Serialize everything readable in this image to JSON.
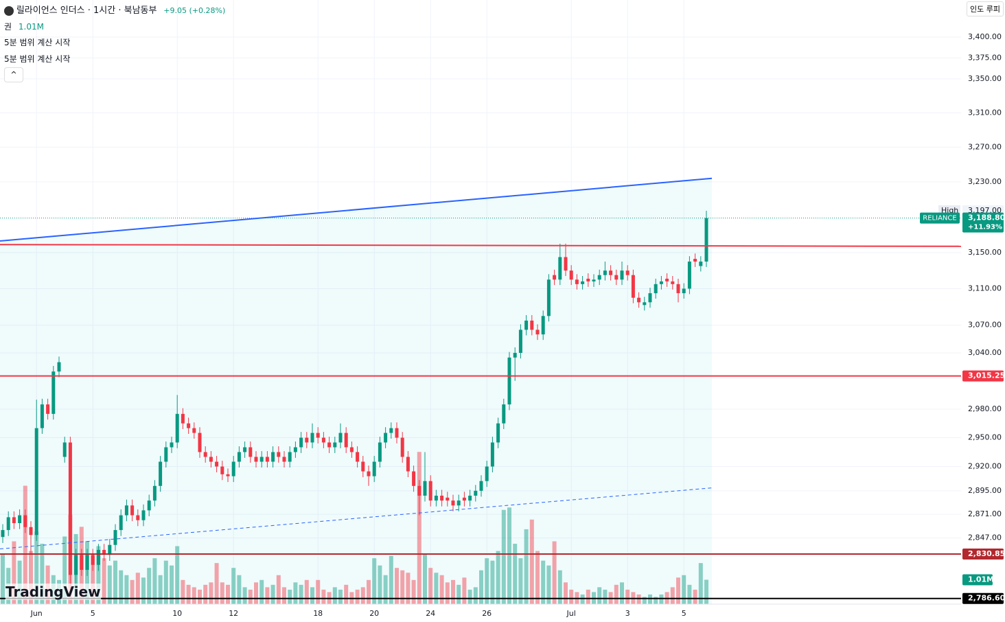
{
  "header": {
    "title": "릴라이언스 인더스 · 1시간 · 북남동부",
    "change": "+9.05 (+0.28%)",
    "volume_name": "권",
    "volume_text": "1.01M",
    "notes": [
      "5분 범위 계산 시작",
      "5분 범위 계산 시작"
    ],
    "currency": "인도 루피",
    "logo": "TradingView"
  },
  "chart_data": {
    "type": "candlestick",
    "log_scale": true,
    "grid": true,
    "up_color": "#089981",
    "down_color": "#f23645",
    "categories": [
      null,
      null,
      null,
      null,
      null,
      null,
      "Jun",
      null,
      null,
      null,
      null,
      null,
      null,
      null,
      null,
      null,
      "5",
      null,
      null,
      null,
      null,
      null,
      null,
      null,
      null,
      null,
      null,
      null,
      null,
      null,
      null,
      "10",
      null,
      null,
      null,
      null,
      null,
      null,
      null,
      null,
      null,
      "12",
      null,
      null,
      null,
      null,
      null,
      null,
      null,
      null,
      null,
      null,
      null,
      null,
      null,
      null,
      "18",
      null,
      null,
      null,
      null,
      null,
      null,
      null,
      null,
      null,
      "20",
      null,
      null,
      null,
      null,
      null,
      null,
      null,
      null,
      null,
      "24",
      null,
      null,
      null,
      null,
      null,
      null,
      null,
      null,
      null,
      "26",
      null,
      null,
      null,
      null,
      null,
      null,
      null,
      null,
      null,
      null,
      null,
      null,
      null,
      null,
      "Jul",
      null,
      null,
      null,
      null,
      null,
      null,
      null,
      null,
      null,
      "3",
      null,
      null,
      null,
      null,
      null,
      null,
      null,
      null,
      null,
      "5",
      null,
      null,
      null,
      null
    ],
    "open": [
      2848,
      2855,
      2868,
      2862,
      2870,
      2858,
      2850,
      2960,
      2985,
      2975,
      3020,
      2930,
      2945,
      2810,
      2830,
      2815,
      2830,
      2820,
      2835,
      2830,
      2840,
      2855,
      2870,
      2880,
      2870,
      2865,
      2875,
      2885,
      2900,
      2925,
      2940,
      2945,
      2975,
      2965,
      2960,
      2955,
      2935,
      2930,
      2925,
      2920,
      2912,
      2910,
      2925,
      2935,
      2940,
      2930,
      2925,
      2930,
      2925,
      2935,
      2930,
      2925,
      2935,
      2940,
      2950,
      2945,
      2955,
      2950,
      2945,
      2940,
      2945,
      2955,
      2940,
      2935,
      2925,
      2915,
      2910,
      2925,
      2945,
      2955,
      2960,
      2950,
      2930,
      2915,
      2900,
      2890,
      2905,
      2885,
      2890,
      2888,
      2885,
      2880,
      2888,
      2885,
      2890,
      2895,
      2905,
      2920,
      2945,
      2965,
      2985,
      3035,
      3040,
      3065,
      3075,
      3065,
      3060,
      3080,
      3125,
      3120,
      3145,
      3130,
      3120,
      3115,
      3121,
      3118,
      3120,
      3125,
      3130,
      3125,
      3120,
      3130,
      3125,
      3100,
      3092,
      3095,
      3105,
      3115,
      3121,
      3118,
      3115,
      3105,
      3110,
      3143,
      3135,
      3140
    ],
    "high": [
      2861,
      2874,
      2874,
      2876,
      2876,
      2864,
      2990,
      2991,
      2991,
      3026,
      3036,
      2951,
      2951,
      2836,
      2836,
      2836,
      2836,
      2841,
      2841,
      2846,
      2861,
      2876,
      2886,
      2886,
      2876,
      2881,
      2891,
      2906,
      2931,
      2946,
      2951,
      2995,
      2981,
      2971,
      2966,
      2961,
      2941,
      2936,
      2931,
      2926,
      2918,
      2931,
      2941,
      2946,
      2946,
      2936,
      2936,
      2936,
      2941,
      2941,
      2936,
      2941,
      2946,
      2956,
      2956,
      2965,
      2961,
      2956,
      2951,
      2951,
      2965,
      2961,
      2946,
      2941,
      2931,
      2921,
      2931,
      2951,
      2961,
      2966,
      2966,
      2956,
      2936,
      2921,
      2906,
      2935,
      2911,
      2896,
      2896,
      2894,
      2891,
      2891,
      2894,
      2896,
      2901,
      2911,
      2926,
      2951,
      2971,
      2991,
      3041,
      3046,
      3071,
      3081,
      3081,
      3071,
      3086,
      3126,
      3131,
      3160,
      3160,
      3136,
      3126,
      3124,
      3127,
      3126,
      3131,
      3140,
      3136,
      3131,
      3140,
      3136,
      3131,
      3106,
      3101,
      3111,
      3121,
      3124,
      3127,
      3124,
      3121,
      3116,
      3146,
      3149,
      3146,
      3197
    ],
    "low": [
      2842,
      2849,
      2856,
      2856,
      2852,
      2830,
      2844,
      2954,
      2969,
      2969,
      3014,
      2924,
      2790,
      2795,
      2809,
      2809,
      2814,
      2814,
      2824,
      2824,
      2834,
      2849,
      2864,
      2864,
      2859,
      2859,
      2869,
      2879,
      2894,
      2919,
      2934,
      2939,
      2959,
      2954,
      2949,
      2929,
      2924,
      2919,
      2914,
      2906,
      2904,
      2904,
      2919,
      2929,
      2924,
      2919,
      2919,
      2919,
      2919,
      2924,
      2919,
      2919,
      2929,
      2934,
      2939,
      2939,
      2944,
      2939,
      2934,
      2934,
      2939,
      2934,
      2929,
      2919,
      2909,
      2900,
      2904,
      2919,
      2939,
      2949,
      2944,
      2924,
      2909,
      2894,
      2870,
      2884,
      2879,
      2879,
      2879,
      2879,
      2874,
      2874,
      2879,
      2879,
      2884,
      2889,
      2899,
      2914,
      2939,
      2959,
      2979,
      3010,
      3034,
      3059,
      3059,
      3054,
      3054,
      3074,
      3114,
      3114,
      3124,
      3114,
      3109,
      3109,
      3112,
      3112,
      3114,
      3119,
      3119,
      3114,
      3114,
      3119,
      3094,
      3089,
      3086,
      3089,
      3099,
      3109,
      3112,
      3109,
      3095,
      3099,
      3104,
      3134,
      3129,
      3134
    ],
    "close": [
      2855,
      2868,
      2862,
      2870,
      2858,
      2850,
      2960,
      2985,
      2975,
      3020,
      3030,
      2945,
      2810,
      2830,
      2815,
      2830,
      2820,
      2835,
      2830,
      2840,
      2855,
      2870,
      2880,
      2870,
      2865,
      2875,
      2885,
      2900,
      2925,
      2940,
      2945,
      2975,
      2965,
      2960,
      2955,
      2935,
      2930,
      2925,
      2920,
      2912,
      2910,
      2925,
      2935,
      2940,
      2930,
      2925,
      2930,
      2925,
      2935,
      2930,
      2925,
      2935,
      2940,
      2950,
      2945,
      2955,
      2950,
      2945,
      2940,
      2945,
      2955,
      2940,
      2935,
      2925,
      2915,
      2910,
      2925,
      2945,
      2955,
      2960,
      2950,
      2930,
      2915,
      2900,
      2890,
      2905,
      2885,
      2890,
      2885,
      2885,
      2880,
      2885,
      2885,
      2890,
      2895,
      2905,
      2920,
      2945,
      2965,
      2985,
      3035,
      3040,
      3065,
      3075,
      3065,
      3060,
      3080,
      3120,
      3120,
      3145,
      3130,
      3120,
      3115,
      3118,
      3118,
      3120,
      3125,
      3130,
      3125,
      3120,
      3130,
      3125,
      3100,
      3095,
      3095,
      3105,
      3115,
      3118,
      3118,
      3115,
      3105,
      3110,
      3140,
      3140,
      3140,
      3188.8
    ],
    "volume": [
      2.1,
      1.5,
      2.6,
      1.8,
      4.9,
      2.2,
      3.0,
      2.5,
      1.6,
      1.2,
      1.0,
      2.8,
      3.7,
      2.9,
      3.2,
      2.6,
      2.0,
      2.4,
      1.9,
      1.6,
      1.8,
      1.4,
      1.2,
      1.0,
      1.3,
      1.1,
      1.5,
      1.9,
      1.2,
      1.8,
      1.6,
      2.4,
      1.0,
      0.8,
      0.7,
      0.6,
      0.8,
      0.9,
      1.7,
      0.9,
      0.8,
      1.5,
      1.2,
      0.7,
      0.6,
      0.9,
      1.0,
      0.7,
      0.8,
      1.2,
      0.7,
      0.6,
      0.9,
      0.8,
      1.0,
      0.7,
      1.0,
      0.6,
      0.5,
      0.7,
      0.6,
      0.8,
      0.5,
      0.6,
      0.7,
      1.0,
      1.9,
      1.6,
      1.2,
      2.0,
      1.5,
      1.4,
      1.3,
      1.0,
      6.3,
      2.1,
      1.5,
      1.3,
      1.2,
      0.9,
      1.0,
      0.8,
      1.1,
      0.6,
      0.7,
      1.4,
      1.9,
      1.8,
      2.2,
      3.9,
      4.0,
      2.5,
      1.9,
      3.1,
      3.5,
      2.2,
      1.8,
      1.6,
      2.6,
      1.4,
      0.9,
      0.6,
      0.5,
      0.4,
      0.6,
      0.5,
      0.7,
      0.6,
      0.5,
      0.8,
      0.9,
      0.6,
      0.5,
      0.4,
      0.3,
      0.4,
      0.3,
      0.4,
      0.5,
      0.7,
      1.1,
      1.2,
      0.8,
      0.6,
      1.7,
      1.01
    ],
    "volume_ylim": [
      0,
      25
    ],
    "ylim": [
      2781,
      3445
    ],
    "yticks": [
      {
        "value": 3400,
        "label": "3,400.00"
      },
      {
        "value": 3375,
        "label": "3,375.00"
      },
      {
        "value": 3350,
        "label": "3,350.00"
      },
      {
        "value": 3310,
        "label": "3,310.00"
      },
      {
        "value": 3270,
        "label": "3,270.00"
      },
      {
        "value": 3230,
        "label": "3,230.00"
      },
      {
        "value": 3150,
        "label": "3,150.00"
      },
      {
        "value": 3110,
        "label": "3,110.00"
      },
      {
        "value": 3070,
        "label": "3,070.00"
      },
      {
        "value": 3040,
        "label": "3,040.00"
      },
      {
        "value": 2980,
        "label": "2,980.00"
      },
      {
        "value": 2950,
        "label": "2,950.00"
      },
      {
        "value": 2920,
        "label": "2,920.00"
      },
      {
        "value": 2895,
        "label": "2,895.00"
      },
      {
        "value": 2871,
        "label": "2,871.00"
      },
      {
        "value": 2847,
        "label": "2,847.00"
      }
    ],
    "price_lines": [
      {
        "value": 3015.25,
        "label": "3,015.25",
        "color": "#f23645"
      },
      {
        "value": 2830.85,
        "label": "2,830.85",
        "color": "#b2282e"
      },
      {
        "value": 2786.6,
        "label": "2,786.60",
        "color": "#000000"
      }
    ],
    "trendlines": [
      {
        "start": 3163,
        "end": 3234,
        "color": "#2962ff",
        "style": "solid"
      },
      {
        "start": 2836,
        "end": 2898,
        "color": "#2962ff",
        "style": "dashed"
      },
      {
        "start": 3159,
        "end": 3157,
        "color": "#f23645",
        "style": "solid",
        "extended": true
      }
    ],
    "last": {
      "symbol": "RELIANCE",
      "value": 3188.8,
      "label": "3,188.80",
      "change": "+11.93%"
    },
    "high_mark": {
      "text": "High",
      "value": 3197,
      "label": "3,197.00"
    }
  }
}
